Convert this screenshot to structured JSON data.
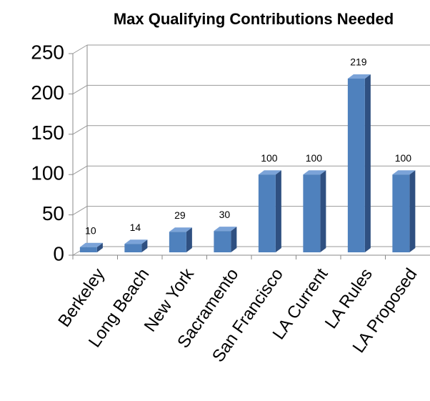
{
  "chart_data": {
    "type": "bar3d",
    "title": "Max Qualifying Contributions Needed",
    "categories": [
      "Berkeley",
      "Long Beach",
      "New York",
      "Sacramento",
      "San Francisco",
      "LA Current",
      "LA Rules",
      "LA Proposed"
    ],
    "values": [
      10,
      14,
      29,
      30,
      100,
      100,
      219,
      100
    ],
    "color": "#4f81bd",
    "ylim": [
      0,
      250
    ],
    "yticks": [
      0,
      50,
      100,
      150,
      200,
      250
    ],
    "grid": true
  }
}
